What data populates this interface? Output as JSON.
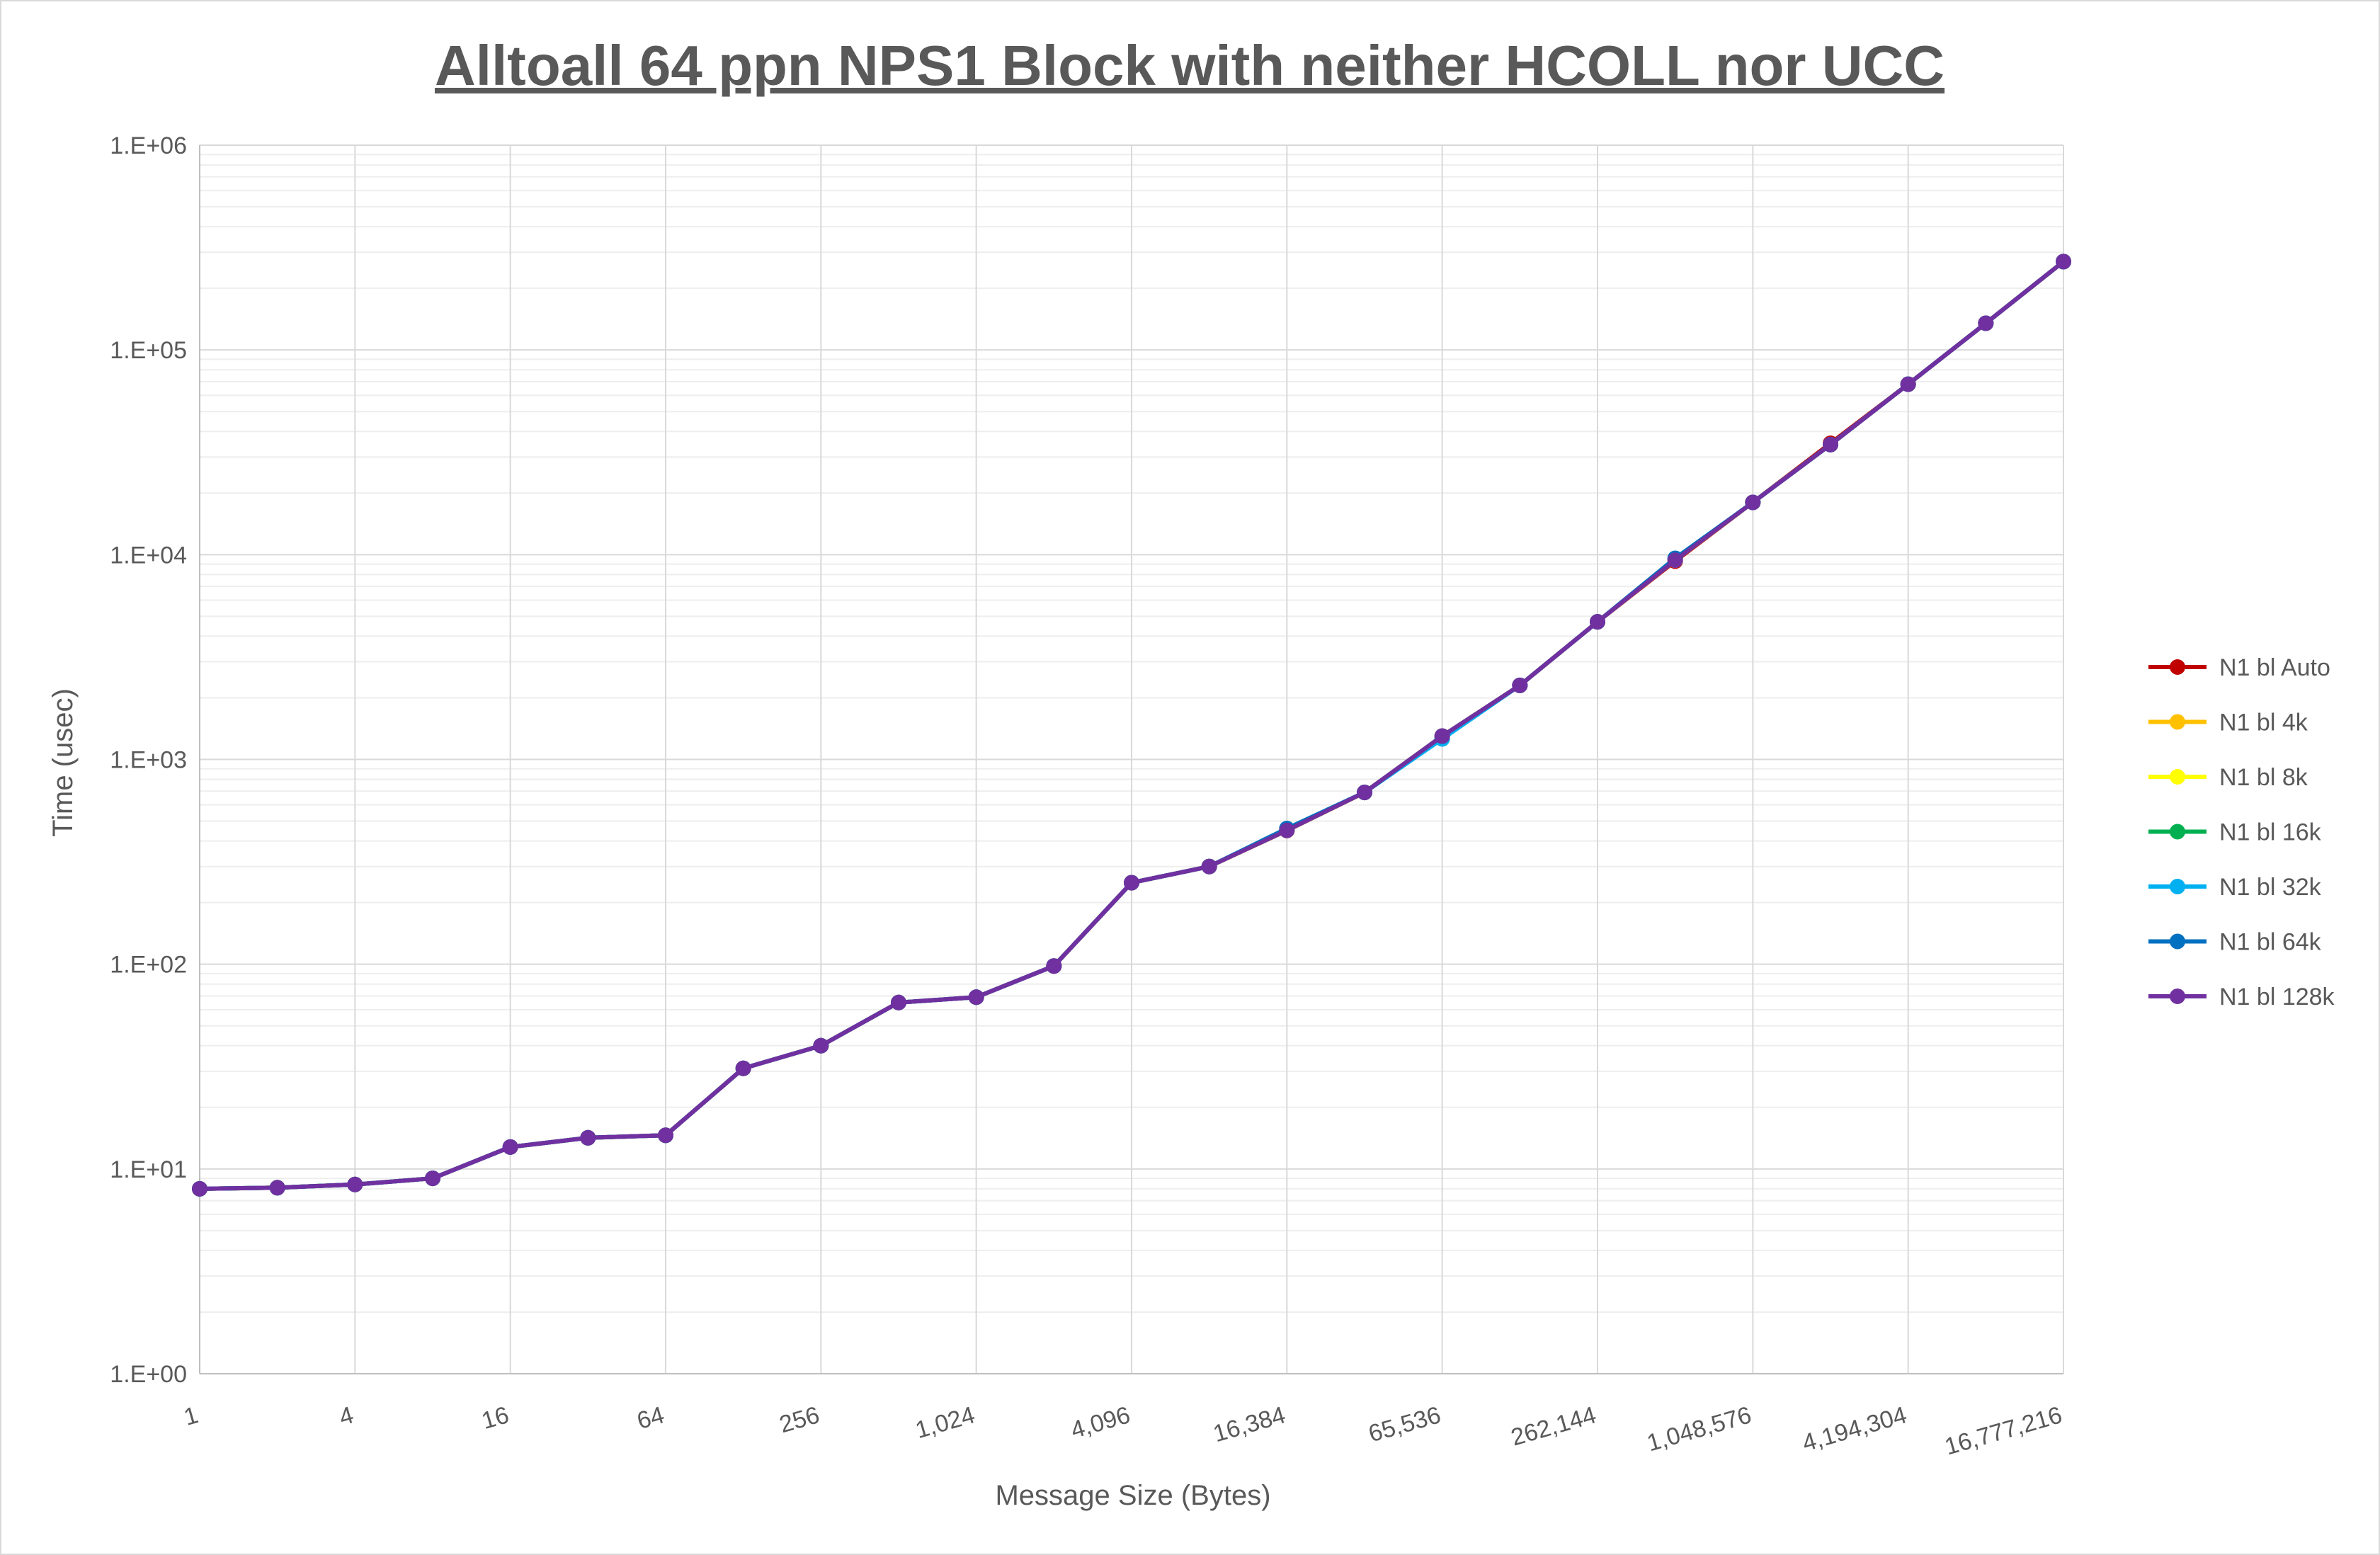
{
  "chart_data": {
    "type": "line",
    "title": "Alltoall 64 ppn NPS1 Block with neither HCOLL nor UCC",
    "xlabel": "Message Size (Bytes)",
    "ylabel": "Time (usec)",
    "x_scale": "log2",
    "y_scale": "log10",
    "ylim": [
      1,
      1000000
    ],
    "grid": true,
    "legend_position": "right",
    "x": [
      1,
      2,
      4,
      8,
      16,
      32,
      64,
      128,
      256,
      512,
      1024,
      2048,
      4096,
      8192,
      16384,
      32768,
      65536,
      131072,
      262144,
      524288,
      1048576,
      2097152,
      4194304,
      8388608,
      16777216
    ],
    "x_tick_labels": [
      "1",
      "4",
      "16",
      "64",
      "256",
      "1,024",
      "4,096",
      "16,384",
      "65,536",
      "262,144",
      "1,048,576",
      "4,194,304",
      "16,777,216"
    ],
    "x_tick_values": [
      1,
      4,
      16,
      64,
      256,
      1024,
      4096,
      16384,
      65536,
      262144,
      1048576,
      4194304,
      16777216
    ],
    "y_tick_labels": [
      "1.E+00",
      "1.E+01",
      "1.E+02",
      "1.E+03",
      "1.E+04",
      "1.E+05",
      "1.E+06"
    ],
    "y_tick_values": [
      1,
      10,
      100,
      1000,
      10000,
      100000,
      1000000
    ],
    "series": [
      {
        "name": "N1 bl Auto",
        "color": "#c00000",
        "values": [
          8.0,
          8.1,
          8.4,
          9.0,
          12.8,
          14.2,
          14.6,
          31,
          40,
          65,
          69,
          98,
          250,
          300,
          450,
          690,
          1300,
          2300,
          4700,
          9300,
          18000,
          35000,
          68000,
          135000,
          270000
        ]
      },
      {
        "name": "N1 bl 4k",
        "color": "#ffc000",
        "values": [
          8.0,
          8.1,
          8.4,
          9.0,
          12.8,
          14.2,
          14.6,
          31,
          40,
          65,
          69,
          98,
          250,
          300,
          450,
          690,
          1300,
          2300,
          4700,
          9400,
          18000,
          34500,
          68000,
          135000,
          270000
        ]
      },
      {
        "name": "N1 bl 8k",
        "color": "#ffff00",
        "values": [
          8.0,
          8.1,
          8.4,
          9.0,
          12.8,
          14.2,
          14.6,
          31,
          40,
          65,
          69,
          98,
          250,
          300,
          450,
          690,
          1300,
          2300,
          4700,
          9400,
          18000,
          34500,
          68000,
          135000,
          270000
        ]
      },
      {
        "name": "N1 bl 16k",
        "color": "#00b050",
        "values": [
          8.0,
          8.1,
          8.4,
          9.0,
          12.8,
          14.2,
          14.6,
          31,
          40,
          65,
          69,
          98,
          250,
          300,
          455,
          690,
          1290,
          2300,
          4700,
          9500,
          18000,
          34500,
          68000,
          135000,
          270000
        ]
      },
      {
        "name": "N1 bl 32k",
        "color": "#00b0f0",
        "values": [
          8.0,
          8.1,
          8.4,
          9.0,
          12.8,
          14.2,
          14.6,
          31,
          40,
          65,
          69,
          98,
          250,
          300,
          455,
          690,
          1260,
          2300,
          4700,
          9500,
          18000,
          34500,
          68000,
          135000,
          270000
        ]
      },
      {
        "name": "N1 bl 64k",
        "color": "#0070c0",
        "values": [
          8.0,
          8.1,
          8.4,
          9.0,
          12.8,
          14.2,
          14.6,
          31,
          40,
          65,
          69,
          98,
          250,
          300,
          460,
          690,
          1300,
          2300,
          4700,
          9600,
          18000,
          34500,
          68000,
          135000,
          270000
        ]
      },
      {
        "name": "N1 bl 128k",
        "color": "#7030a0",
        "values": [
          8.0,
          8.1,
          8.4,
          9.0,
          12.8,
          14.2,
          14.6,
          31,
          40,
          65,
          69,
          98,
          250,
          300,
          450,
          690,
          1300,
          2300,
          4700,
          9400,
          18000,
          34500,
          68000,
          135000,
          270000
        ]
      }
    ]
  }
}
